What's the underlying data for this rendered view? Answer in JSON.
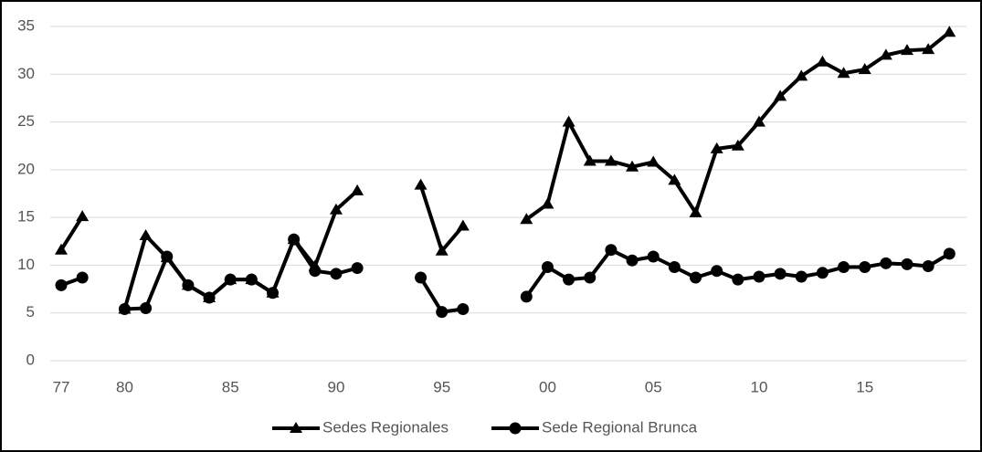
{
  "chart_data": {
    "type": "line",
    "categories": [
      "77",
      null,
      null,
      "80",
      null,
      null,
      null,
      null,
      "85",
      null,
      null,
      null,
      null,
      "90",
      null,
      null,
      null,
      null,
      "95",
      null,
      null,
      null,
      null,
      "00",
      null,
      null,
      null,
      null,
      "05",
      null,
      null,
      null,
      null,
      "10",
      null,
      null,
      null,
      null,
      "15",
      null,
      null,
      null,
      null
    ],
    "series": [
      {
        "name": "Sedes Regionales",
        "color": "#000000",
        "marker": "triangle",
        "values": [
          11.6,
          15.1,
          null,
          5.4,
          13.1,
          10.8,
          7.9,
          6.6,
          8.5,
          8.5,
          7.1,
          12.7,
          9.9,
          15.8,
          17.8,
          null,
          null,
          18.4,
          11.5,
          14.1,
          null,
          null,
          14.8,
          16.4,
          25.0,
          20.9,
          20.9,
          20.3,
          20.8,
          18.9,
          15.5,
          22.2,
          22.5,
          25.0,
          27.7,
          29.8,
          31.3,
          30.1,
          30.5,
          32.0,
          32.5,
          32.6,
          34.4
        ]
      },
      {
        "name": "Sede Regional Brunca",
        "color": "#000000",
        "marker": "circle",
        "values": [
          7.9,
          8.7,
          null,
          5.4,
          5.5,
          10.9,
          7.9,
          6.6,
          8.5,
          8.5,
          7.1,
          12.7,
          9.4,
          9.1,
          9.7,
          null,
          null,
          8.7,
          5.1,
          5.4,
          null,
          null,
          6.7,
          9.8,
          8.5,
          8.7,
          11.6,
          10.5,
          10.9,
          9.8,
          8.7,
          9.4,
          8.5,
          8.8,
          9.1,
          8.8,
          9.2,
          9.8,
          9.8,
          10.2,
          10.1,
          9.9,
          11.2
        ]
      }
    ],
    "ylim": [
      0,
      35
    ],
    "yticks": [
      0,
      5,
      10,
      15,
      20,
      25,
      30,
      35
    ],
    "grid": true,
    "legend": "bottom"
  }
}
